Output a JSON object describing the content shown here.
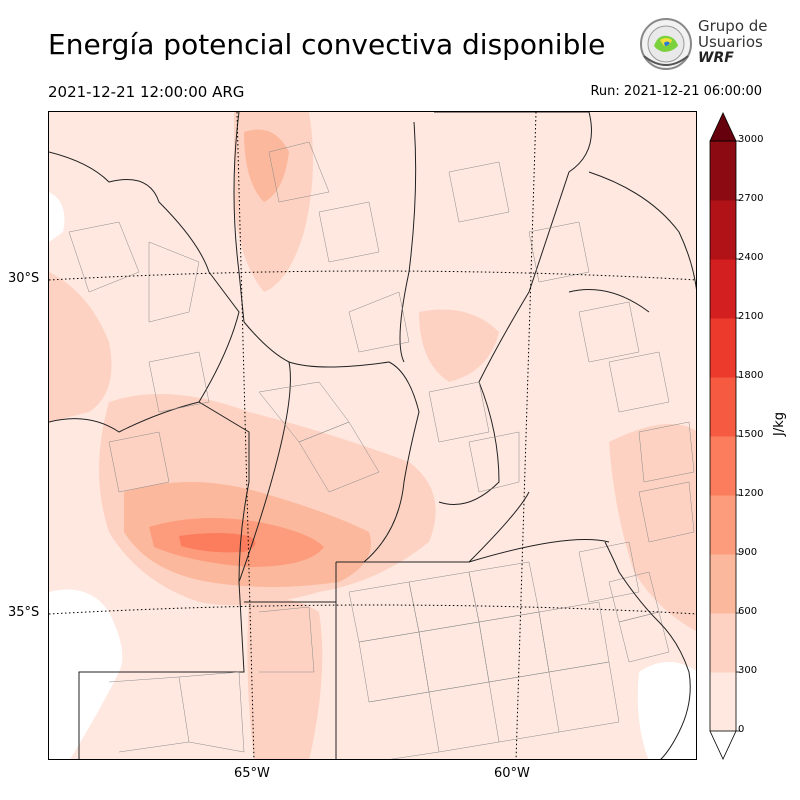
{
  "header": {
    "title": "Energía potencial convectiva disponible",
    "valid_time": "2021-12-21 12:00:00 ARG",
    "run_time": "Run: 2021-12-21 06:00:00"
  },
  "logo": {
    "line1": "Grupo de",
    "line2": "Usuarios",
    "line3": "WRF"
  },
  "map": {
    "lat_labels": [
      "30°S",
      "35°S"
    ],
    "lon_labels": [
      "65°W",
      "60°W"
    ]
  },
  "colorbar": {
    "unit": "J/kg",
    "ticks": [
      "0",
      "300",
      "600",
      "900",
      "1200",
      "1500",
      "1800",
      "2100",
      "2400",
      "2700",
      "3000"
    ],
    "colors": [
      "#fee8e0",
      "#fdd2c2",
      "#fcb89c",
      "#fc9c7c",
      "#fb7d5d",
      "#f65a40",
      "#ec3a2c",
      "#d31f20",
      "#b11217",
      "#8c0a12",
      "#67000d"
    ]
  }
}
